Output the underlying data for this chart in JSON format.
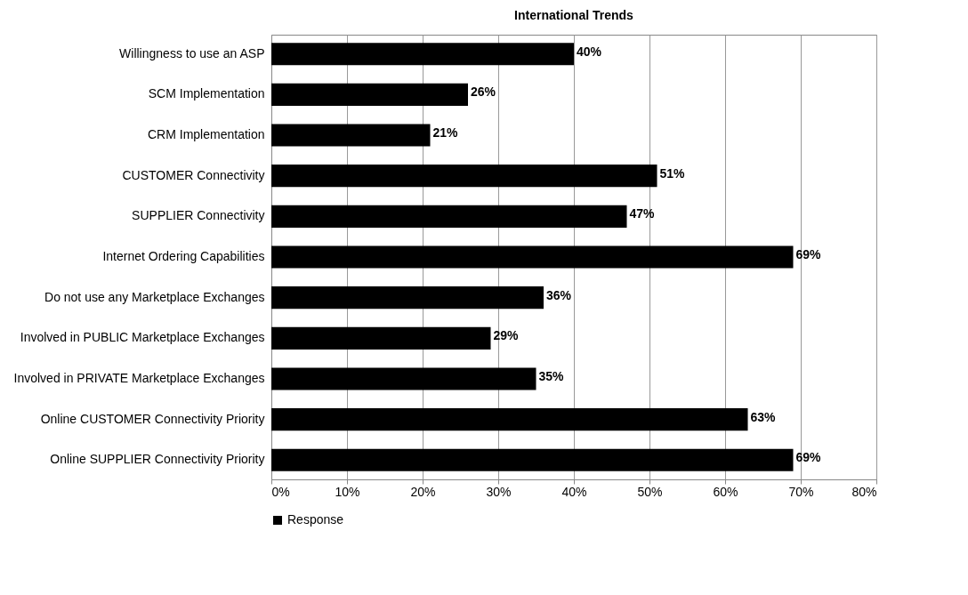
{
  "chart_data": {
    "type": "bar",
    "orientation": "horizontal",
    "title": "International Trends",
    "categories": [
      "Willingness to use an ASP",
      "SCM Implementation",
      "CRM Implementation",
      "CUSTOMER Connectivity",
      "SUPPLIER Connectivity",
      "Internet Ordering Capabilities",
      "Do not use any Marketplace Exchanges",
      "Involved in PUBLIC Marketplace Exchanges",
      "Involved in PRIVATE Marketplace Exchanges",
      "Online CUSTOMER Connectivity Priority",
      "Online SUPPLIER Connectivity Priority"
    ],
    "series": [
      {
        "name": "Response",
        "color": "#000000",
        "values": [
          40,
          26,
          21,
          51,
          47,
          69,
          36,
          29,
          35,
          63,
          69
        ],
        "value_labels": [
          "40%",
          "26%",
          "21%",
          "51%",
          "47%",
          "69%",
          "36%",
          "29%",
          "35%",
          "63%",
          "69%"
        ]
      }
    ],
    "xlim": [
      0,
      80
    ],
    "xticks": [
      {
        "value": 0,
        "label": "0%"
      },
      {
        "value": 10,
        "label": "10%"
      },
      {
        "value": 20,
        "label": "20%"
      },
      {
        "value": 30,
        "label": "30%"
      },
      {
        "value": 40,
        "label": "40%"
      },
      {
        "value": 50,
        "label": "50%"
      },
      {
        "value": 60,
        "label": "60%"
      },
      {
        "value": 70,
        "label": "70%"
      },
      {
        "value": 80,
        "label": "80%"
      }
    ],
    "grid": "x",
    "legend": "bottom"
  }
}
